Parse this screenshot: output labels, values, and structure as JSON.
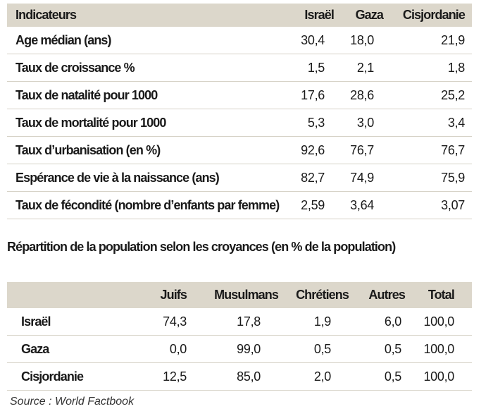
{
  "indicators": {
    "headers": [
      "Indicateurs",
      "Israël",
      "Gaza",
      "Cisjordanie"
    ],
    "rows": [
      {
        "label": "Age médian (ans)",
        "israel": "30,4",
        "gaza": "18,0",
        "cisjordanie": "21,9"
      },
      {
        "label": "Taux de croissance %",
        "israel": "1,5",
        "gaza": "2,1",
        "cisjordanie": "1,8"
      },
      {
        "label": "Taux de natalité pour 1000",
        "israel": "17,6",
        "gaza": "28,6",
        "cisjordanie": "25,2"
      },
      {
        "label": "Taux de mortalité pour 1000",
        "israel": "5,3",
        "gaza": "3,0",
        "cisjordanie": "3,4"
      },
      {
        "label": "Taux d’urbanisation (en %)",
        "israel": "92,6",
        "gaza": "76,7",
        "cisjordanie": "76,7"
      },
      {
        "label": "Espérance de vie à la naissance (ans)",
        "israel": "82,7",
        "gaza": "74,9",
        "cisjordanie": "75,9"
      },
      {
        "label": "Taux de fécondité (nombre d’enfants par femme)",
        "israel": "2,59",
        "gaza": "3,64",
        "cisjordanie": "3,07"
      }
    ]
  },
  "religion": {
    "title": "Répartition de la population selon les croyances (en % de la population)",
    "headers": [
      "",
      "Juifs",
      "Musulmans",
      "Chrétiens",
      "Autres",
      "Total"
    ],
    "rows": [
      {
        "label": "Israël",
        "juifs": "74,3",
        "musulmans": "17,8",
        "chretiens": "1,9",
        "autres": "6,0",
        "total": "100,0"
      },
      {
        "label": "Gaza",
        "juifs": "0,0",
        "musulmans": "99,0",
        "chretiens": "0,5",
        "autres": "0,5",
        "total": "100,0"
      },
      {
        "label": "Cisjordanie",
        "juifs": "12,5",
        "musulmans": "85,0",
        "chretiens": "2,0",
        "autres": "0,5",
        "total": "100,0"
      }
    ]
  },
  "source": "Source : World Factbook",
  "colors": {
    "header_bg": "#dcd7cb",
    "row_border": "#d6d2c7",
    "text": "#1a1a1a"
  }
}
